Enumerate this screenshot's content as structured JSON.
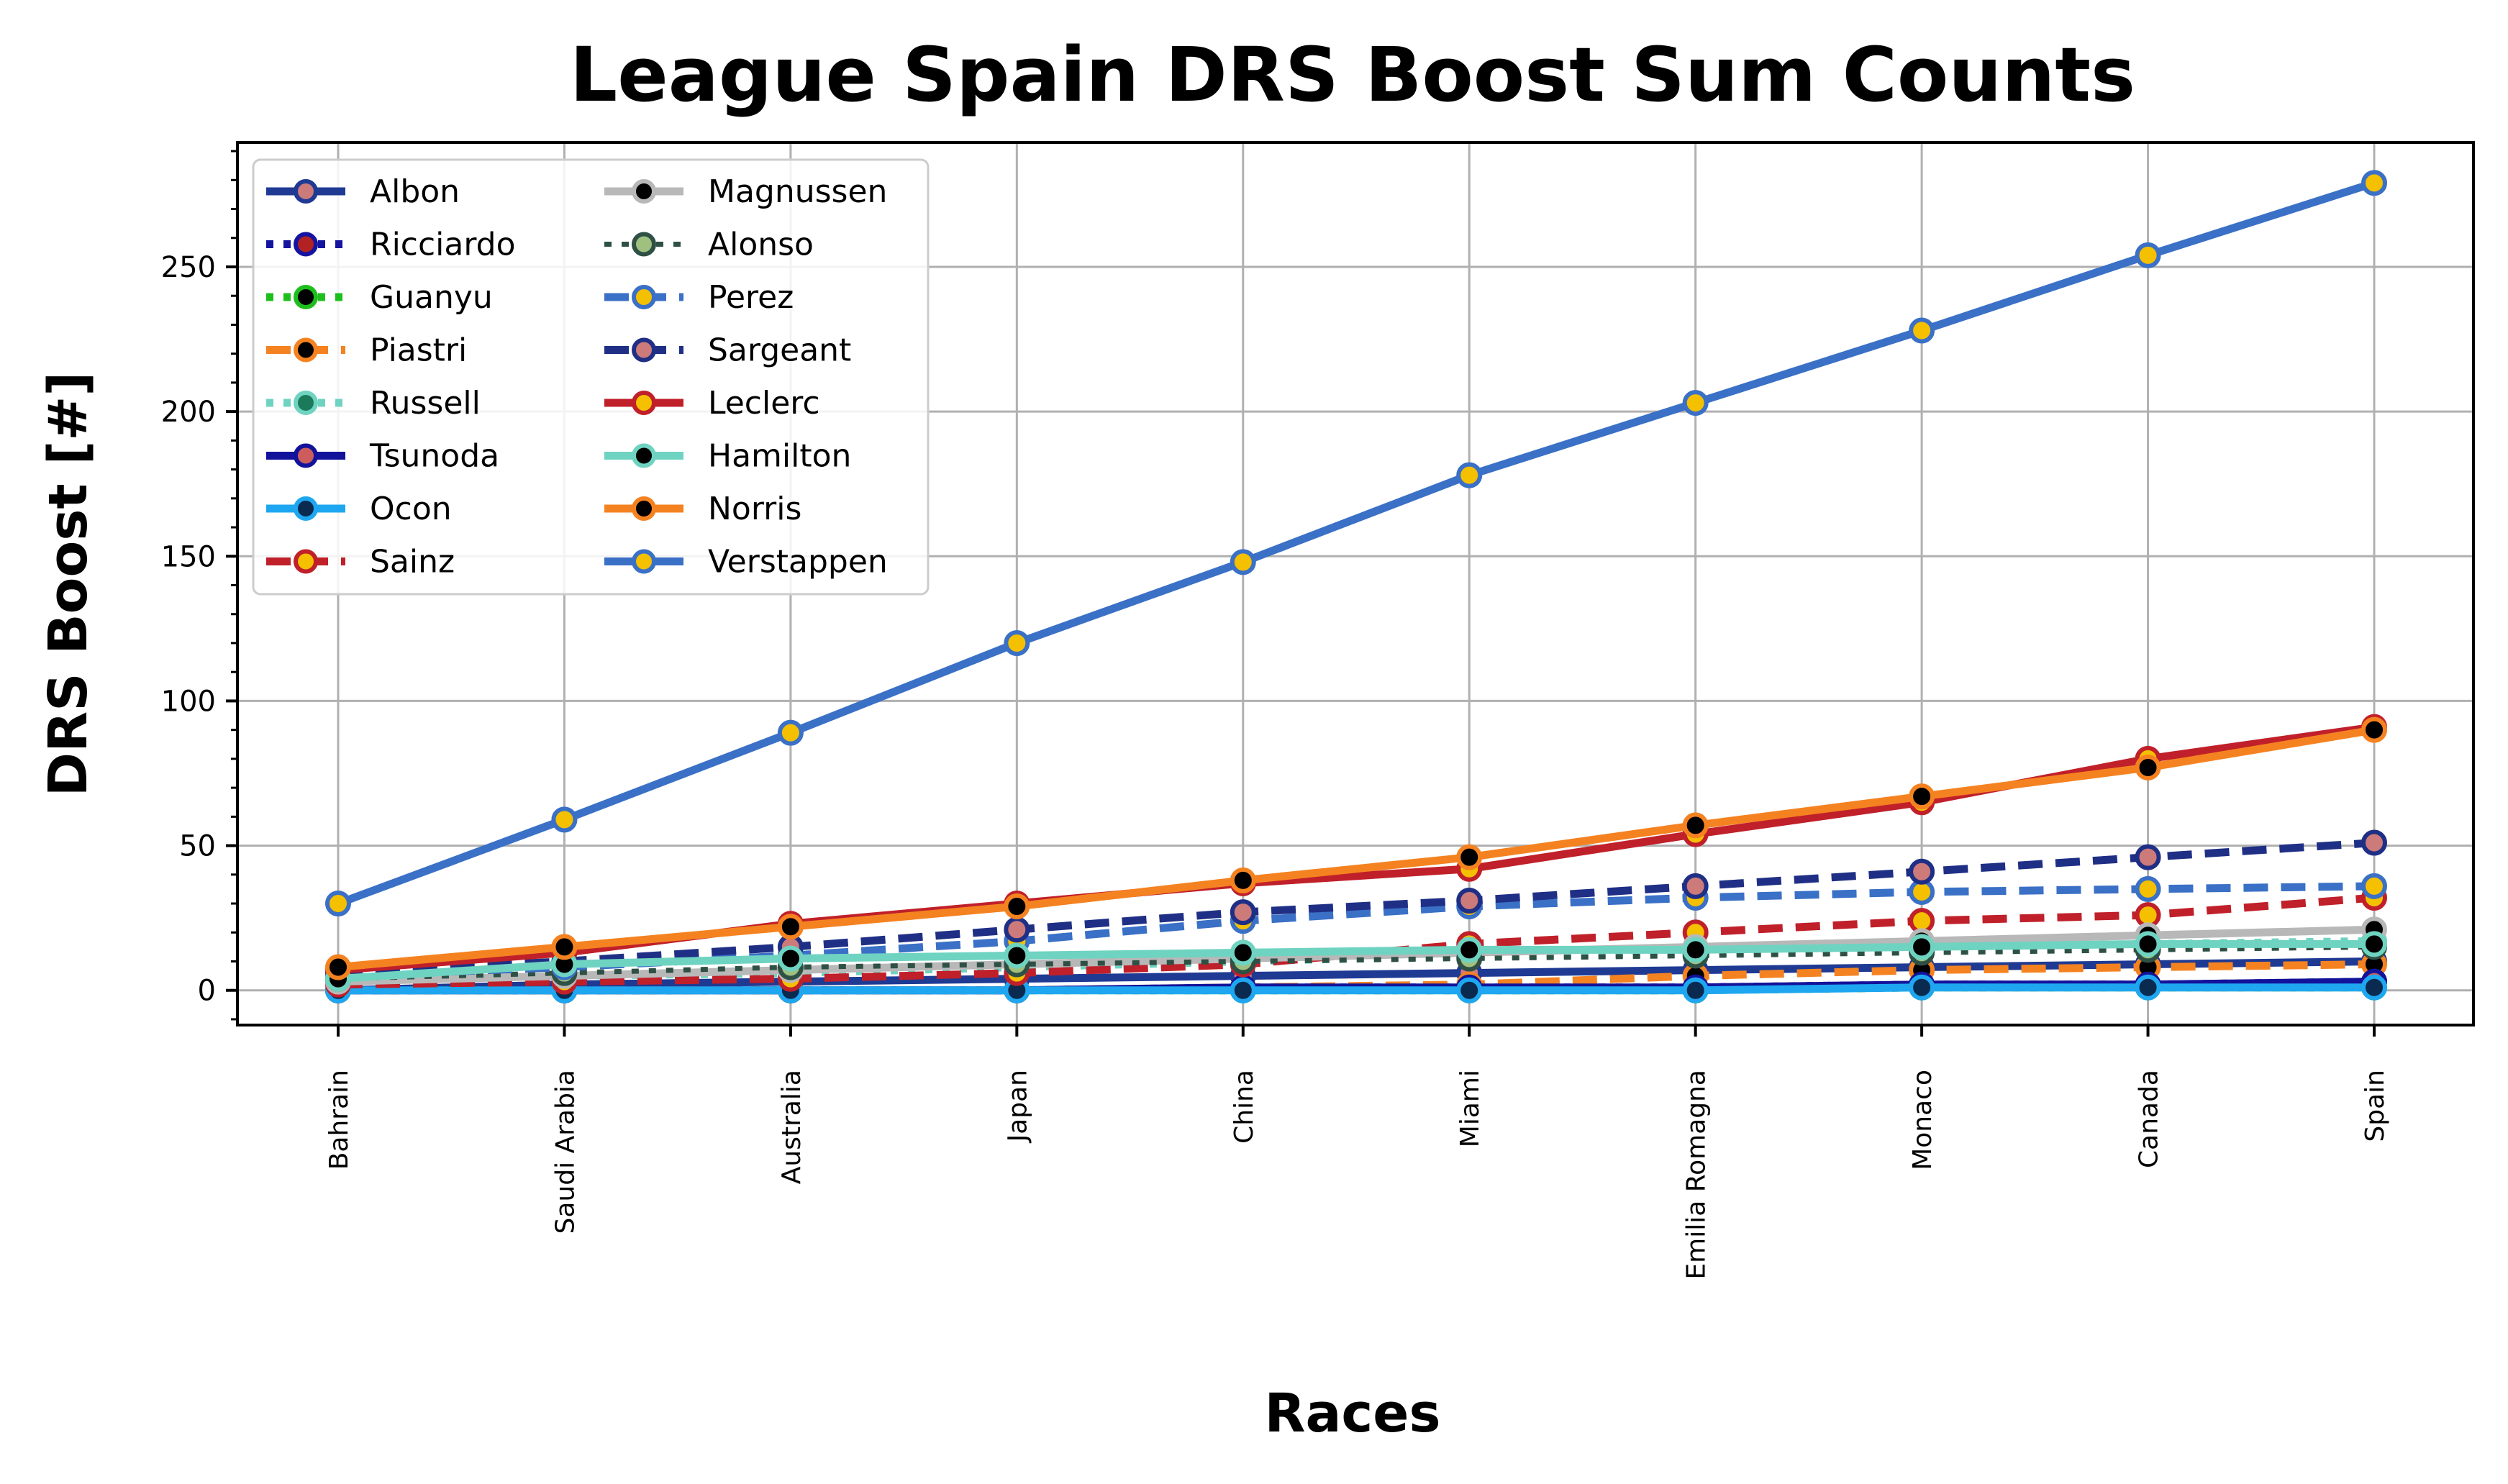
{
  "chart_data": {
    "type": "line",
    "title": "League Spain DRS Boost Sum Counts",
    "xlabel": "Races",
    "ylabel": "DRS Boost [#]",
    "categories": [
      "Bahrain",
      "Saudi Arabia",
      "Australia",
      "Japan",
      "China",
      "Miami",
      "Emilia Romagna",
      "Monaco",
      "Canada",
      "Spain"
    ],
    "ylim": [
      -12,
      293
    ],
    "yticks": [
      0,
      50,
      100,
      150,
      200,
      250
    ],
    "grid": true,
    "legend_position": "upper-left",
    "legend_columns": 2,
    "series": [
      {
        "name": "Albon",
        "color": "#1f3a93",
        "marker_face": "#cd7a7a",
        "dash": "solid",
        "width": "thick",
        "values": [
          0,
          2,
          3,
          4,
          5,
          6,
          7,
          8,
          9,
          10
        ]
      },
      {
        "name": "Ricciardo",
        "color": "#1414a0",
        "marker_face": "#b22222",
        "dash": "dotted",
        "width": "thick",
        "values": [
          0,
          0,
          0,
          0,
          1,
          1,
          1,
          2,
          2,
          3
        ]
      },
      {
        "name": "Guanyu",
        "color": "#1dbf1d",
        "marker_face": "#000000",
        "dash": "dotted",
        "width": "thick",
        "values": [
          0,
          0,
          0,
          0,
          0,
          0,
          0,
          1,
          1,
          1
        ]
      },
      {
        "name": "Piastri",
        "color": "#f58220",
        "marker_face": "#000000",
        "dash": "dashed",
        "width": "thick",
        "values": [
          0,
          0,
          0,
          0,
          1,
          2,
          5,
          7,
          8,
          9
        ]
      },
      {
        "name": "Russell",
        "color": "#6fd3c1",
        "marker_face": "#1a7a5a",
        "dash": "dotted",
        "width": "thick",
        "values": [
          4,
          5,
          6,
          8,
          10,
          12,
          13,
          15,
          16,
          17
        ]
      },
      {
        "name": "Tsunoda",
        "color": "#12129a",
        "marker_face": "#cd5c5c",
        "dash": "solid",
        "width": "thick",
        "values": [
          0,
          0,
          0,
          0,
          1,
          1,
          1,
          2,
          2,
          3
        ]
      },
      {
        "name": "Ocon",
        "color": "#1ea7f0",
        "marker_face": "#0a2a50",
        "dash": "solid",
        "width": "thick",
        "values": [
          0,
          0,
          0,
          0,
          0,
          0,
          0,
          1,
          1,
          1
        ]
      },
      {
        "name": "Sainz",
        "color": "#c0202a",
        "marker_face": "#f5c000",
        "dash": "dashed",
        "width": "thick",
        "values": [
          2,
          3,
          4,
          6,
          9,
          16,
          20,
          24,
          26,
          32
        ]
      },
      {
        "name": "Magnussen",
        "color": "#b8b8b8",
        "marker_face": "#000000",
        "dash": "solid",
        "width": "thick",
        "values": [
          3,
          5,
          7,
          9,
          11,
          13,
          15,
          17,
          19,
          21
        ]
      },
      {
        "name": "Alonso",
        "color": "#2f5045",
        "marker_face": "#a0c080",
        "dash": "dotted",
        "width": "thin",
        "values": [
          4,
          6,
          8,
          9,
          10,
          11,
          12,
          13,
          14,
          15
        ]
      },
      {
        "name": "Perez",
        "color": "#3a70c6",
        "marker_face": "#f5c000",
        "dash": "dashed",
        "width": "thick",
        "values": [
          5,
          8,
          12,
          17,
          24,
          29,
          32,
          34,
          35,
          36
        ]
      },
      {
        "name": "Sargeant",
        "color": "#1f2f85",
        "marker_face": "#cd7a7a",
        "dash": "dashed",
        "width": "thick",
        "values": [
          6,
          10,
          15,
          21,
          27,
          31,
          36,
          41,
          46,
          51
        ]
      },
      {
        "name": "Leclerc",
        "color": "#c0202a",
        "marker_face": "#f5c000",
        "dash": "solid",
        "width": "thick",
        "values": [
          7,
          13,
          23,
          30,
          37,
          42,
          54,
          65,
          80,
          91
        ]
      },
      {
        "name": "Hamilton",
        "color": "#6fd3c1",
        "marker_face": "#000000",
        "dash": "solid",
        "width": "thick",
        "values": [
          4,
          9,
          11,
          12,
          13,
          14,
          14,
          15,
          16,
          16
        ]
      },
      {
        "name": "Norris",
        "color": "#f58220",
        "marker_face": "#000000",
        "dash": "solid",
        "width": "thick",
        "values": [
          8,
          15,
          22,
          29,
          38,
          46,
          57,
          67,
          77,
          90
        ]
      },
      {
        "name": "Verstappen",
        "color": "#3a70c6",
        "marker_face": "#f5c000",
        "dash": "solid",
        "width": "thick",
        "values": [
          30,
          59,
          89,
          120,
          148,
          178,
          203,
          228,
          254,
          279
        ]
      }
    ]
  }
}
